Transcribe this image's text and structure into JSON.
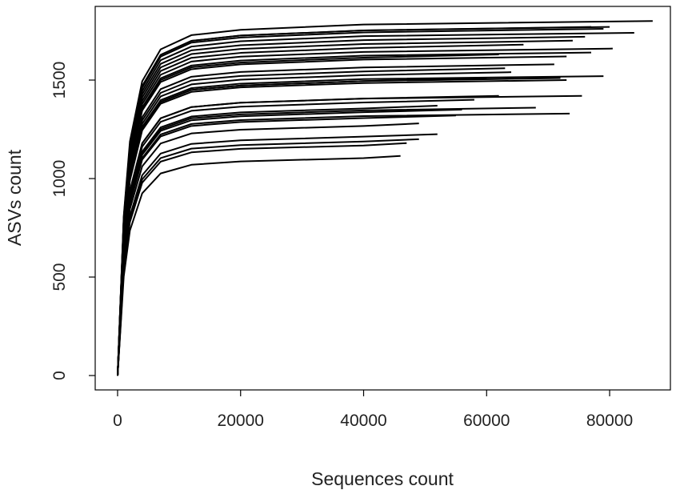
{
  "chart_data": {
    "type": "line",
    "xlabel": "Sequences count",
    "ylabel": "ASVs count",
    "xlim": [
      -3640,
      89880
    ],
    "ylim": [
      -73,
      1874
    ],
    "xticks": [
      0,
      20000,
      40000,
      60000,
      80000
    ],
    "yticks": [
      0,
      500,
      1000,
      1500
    ],
    "grid": false,
    "series": [
      {
        "color": "#000000",
        "x": [
          0,
          1000,
          2000,
          4000,
          7000,
          12000,
          20000,
          40000,
          87000
        ],
        "values": [
          0,
          810,
          1188,
          1494,
          1656,
          1728,
          1755,
          1782,
          1800
        ]
      },
      {
        "color": "#000000",
        "x": [
          0,
          1000,
          2000,
          4000,
          7000,
          12000,
          20000,
          40000,
          84000
        ],
        "values": [
          0,
          783,
          1148,
          1444,
          1601,
          1670,
          1697,
          1723,
          1740
        ]
      },
      {
        "color": "#000000",
        "x": [
          0,
          1000,
          2000,
          4000,
          7000,
          12000,
          20000,
          40000,
          80000
        ],
        "values": [
          0,
          797,
          1168,
          1469,
          1628,
          1699,
          1726,
          1752,
          1770
        ]
      },
      {
        "color": "#000000",
        "x": [
          0,
          1000,
          2000,
          4000,
          7000,
          12000,
          20000,
          40000,
          79000
        ],
        "values": [
          0,
          792,
          1162,
          1461,
          1619,
          1690,
          1716,
          1742,
          1760
        ]
      },
      {
        "color": "#000000",
        "x": [
          0,
          1000,
          2000,
          4000,
          7000,
          12000,
          20000,
          40000,
          77000
        ],
        "values": [
          0,
          797,
          1168,
          1469,
          1628,
          1699,
          1726,
          1752,
          1770
        ]
      },
      {
        "color": "#000000",
        "x": [
          0,
          1000,
          2000,
          4000,
          7000,
          12000,
          20000,
          40000,
          80500
        ],
        "values": [
          0,
          747,
          1096,
          1378,
          1527,
          1594,
          1619,
          1643,
          1660
        ]
      },
      {
        "color": "#000000",
        "x": [
          0,
          1000,
          2000,
          4000,
          7000,
          12000,
          20000,
          40000,
          76000
        ],
        "values": [
          0,
          774,
          1135,
          1428,
          1582,
          1651,
          1677,
          1703,
          1720
        ]
      },
      {
        "color": "#000000",
        "x": [
          0,
          1000,
          2000,
          4000,
          7000,
          12000,
          20000,
          40000,
          74000
        ],
        "values": [
          0,
          765,
          1122,
          1411,
          1564,
          1632,
          1658,
          1683,
          1700
        ]
      },
      {
        "color": "#000000",
        "x": [
          0,
          1000,
          2000,
          4000,
          7000,
          12000,
          20000,
          40000,
          77000
        ],
        "values": [
          0,
          738,
          1082,
          1361,
          1509,
          1574,
          1599,
          1624,
          1640
        ]
      },
      {
        "color": "#000000",
        "x": [
          0,
          1000,
          2000,
          4000,
          7000,
          12000,
          20000,
          40000,
          73000
        ],
        "values": [
          0,
          729,
          1069,
          1345,
          1490,
          1555,
          1580,
          1604,
          1620
        ]
      },
      {
        "color": "#000000",
        "x": [
          0,
          1000,
          2000,
          4000,
          7000,
          12000,
          20000,
          40000,
          66000
        ],
        "values": [
          0,
          756,
          1109,
          1394,
          1546,
          1613,
          1638,
          1663,
          1680
        ]
      },
      {
        "color": "#000000",
        "x": [
          0,
          1000,
          2000,
          4000,
          7000,
          12000,
          20000,
          40000,
          62000
        ],
        "values": [
          0,
          734,
          1076,
          1353,
          1500,
          1565,
          1589,
          1614,
          1630
        ]
      },
      {
        "color": "#000000",
        "x": [
          0,
          1000,
          2000,
          4000,
          7000,
          12000,
          20000,
          40000,
          79000
        ],
        "values": [
          0,
          684,
          1003,
          1262,
          1398,
          1459,
          1482,
          1505,
          1520
        ]
      },
      {
        "color": "#000000",
        "x": [
          0,
          1000,
          2000,
          4000,
          7000,
          12000,
          20000,
          40000,
          73000
        ],
        "values": [
          0,
          675,
          990,
          1245,
          1380,
          1440,
          1463,
          1485,
          1500
        ]
      },
      {
        "color": "#000000",
        "x": [
          0,
          1000,
          2000,
          4000,
          7000,
          12000,
          20000,
          40000,
          72000
        ],
        "values": [
          0,
          680,
          997,
          1253,
          1389,
          1450,
          1472,
          1495,
          1510
        ]
      },
      {
        "color": "#000000",
        "x": [
          0,
          1000,
          2000,
          4000,
          7000,
          12000,
          20000,
          40000,
          60000
        ],
        "values": [
          0,
          680,
          997,
          1253,
          1389,
          1450,
          1472,
          1495,
          1510
        ]
      },
      {
        "color": "#000000",
        "x": [
          0,
          1000,
          2000,
          4000,
          7000,
          12000,
          20000,
          40000,
          64000
        ],
        "values": [
          0,
          693,
          1016,
          1278,
          1417,
          1478,
          1502,
          1525,
          1540
        ]
      },
      {
        "color": "#000000",
        "x": [
          0,
          1000,
          2000,
          4000,
          7000,
          12000,
          20000,
          40000,
          75500
        ],
        "values": [
          0,
          639,
          937,
          1179,
          1306,
          1363,
          1385,
          1406,
          1420
        ]
      },
      {
        "color": "#000000",
        "x": [
          0,
          1000,
          2000,
          4000,
          7000,
          12000,
          20000,
          40000,
          62000
        ],
        "values": [
          0,
          639,
          937,
          1179,
          1306,
          1363,
          1385,
          1406,
          1420
        ]
      },
      {
        "color": "#000000",
        "x": [
          0,
          1000,
          2000,
          4000,
          7000,
          12000,
          20000,
          40000,
          68000
        ],
        "values": [
          0,
          612,
          898,
          1129,
          1251,
          1306,
          1326,
          1346,
          1360
        ]
      },
      {
        "color": "#000000",
        "x": [
          0,
          1000,
          2000,
          4000,
          7000,
          12000,
          20000,
          40000,
          73500
        ],
        "values": [
          0,
          599,
          878,
          1104,
          1224,
          1277,
          1297,
          1317,
          1330
        ]
      },
      {
        "color": "#000000",
        "x": [
          0,
          1000,
          2000,
          4000,
          7000,
          12000,
          20000,
          40000,
          56000
        ],
        "values": [
          0,
          608,
          891,
          1121,
          1242,
          1296,
          1316,
          1337,
          1350
        ]
      },
      {
        "color": "#000000",
        "x": [
          0,
          1000,
          2000,
          4000,
          7000,
          12000,
          20000,
          40000,
          52000
        ],
        "values": [
          0,
          617,
          904,
          1137,
          1260,
          1315,
          1336,
          1356,
          1370
        ]
      },
      {
        "color": "#000000",
        "x": [
          0,
          1000,
          2000,
          4000,
          7000,
          12000,
          20000,
          40000,
          49000
        ],
        "values": [
          0,
          576,
          845,
          1062,
          1178,
          1229,
          1248,
          1267,
          1280
        ]
      },
      {
        "color": "#000000",
        "x": [
          0,
          1000,
          2000,
          4000,
          7000,
          12000,
          20000,
          40000,
          52000
        ],
        "values": [
          0,
          551,
          809,
          1017,
          1127,
          1176,
          1194,
          1213,
          1225
        ]
      },
      {
        "color": "#000000",
        "x": [
          0,
          1000,
          2000,
          4000,
          7000,
          12000,
          20000,
          40000,
          49000
        ],
        "values": [
          0,
          540,
          792,
          996,
          1104,
          1152,
          1170,
          1188,
          1200
        ]
      },
      {
        "color": "#000000",
        "x": [
          0,
          1000,
          2000,
          4000,
          7000,
          12000,
          20000,
          40000,
          47000
        ],
        "values": [
          0,
          531,
          779,
          979,
          1086,
          1133,
          1151,
          1168,
          1180
        ]
      },
      {
        "color": "#000000",
        "x": [
          0,
          1000,
          2000,
          4000,
          7000,
          12000,
          20000,
          40000,
          46000
        ],
        "values": [
          0,
          502,
          736,
          925,
          1026,
          1070,
          1087,
          1104,
          1115
        ]
      },
      {
        "color": "#000000",
        "x": [
          0,
          1000,
          2000,
          4000,
          7000,
          12000,
          20000,
          40000,
          63000
        ],
        "values": [
          0,
          702,
          1030,
          1295,
          1435,
          1498,
          1521,
          1544,
          1560
        ]
      },
      {
        "color": "#000000",
        "x": [
          0,
          1000,
          2000,
          4000,
          7000,
          12000,
          20000,
          40000,
          71000
        ],
        "values": [
          0,
          711,
          1043,
          1311,
          1454,
          1517,
          1541,
          1564,
          1580
        ]
      },
      {
        "color": "#000000",
        "x": [
          0,
          1000,
          2000,
          4000,
          7000,
          12000,
          20000,
          40000,
          58000
        ],
        "values": [
          0,
          630,
          924,
          1162,
          1288,
          1344,
          1365,
          1386,
          1400
        ]
      },
      {
        "color": "#000000",
        "x": [
          0,
          1000,
          2000,
          4000,
          7000,
          12000,
          20000,
          40000,
          55000
        ],
        "values": [
          0,
          594,
          871,
          1096,
          1214,
          1267,
          1287,
          1307,
          1320
        ]
      }
    ]
  }
}
